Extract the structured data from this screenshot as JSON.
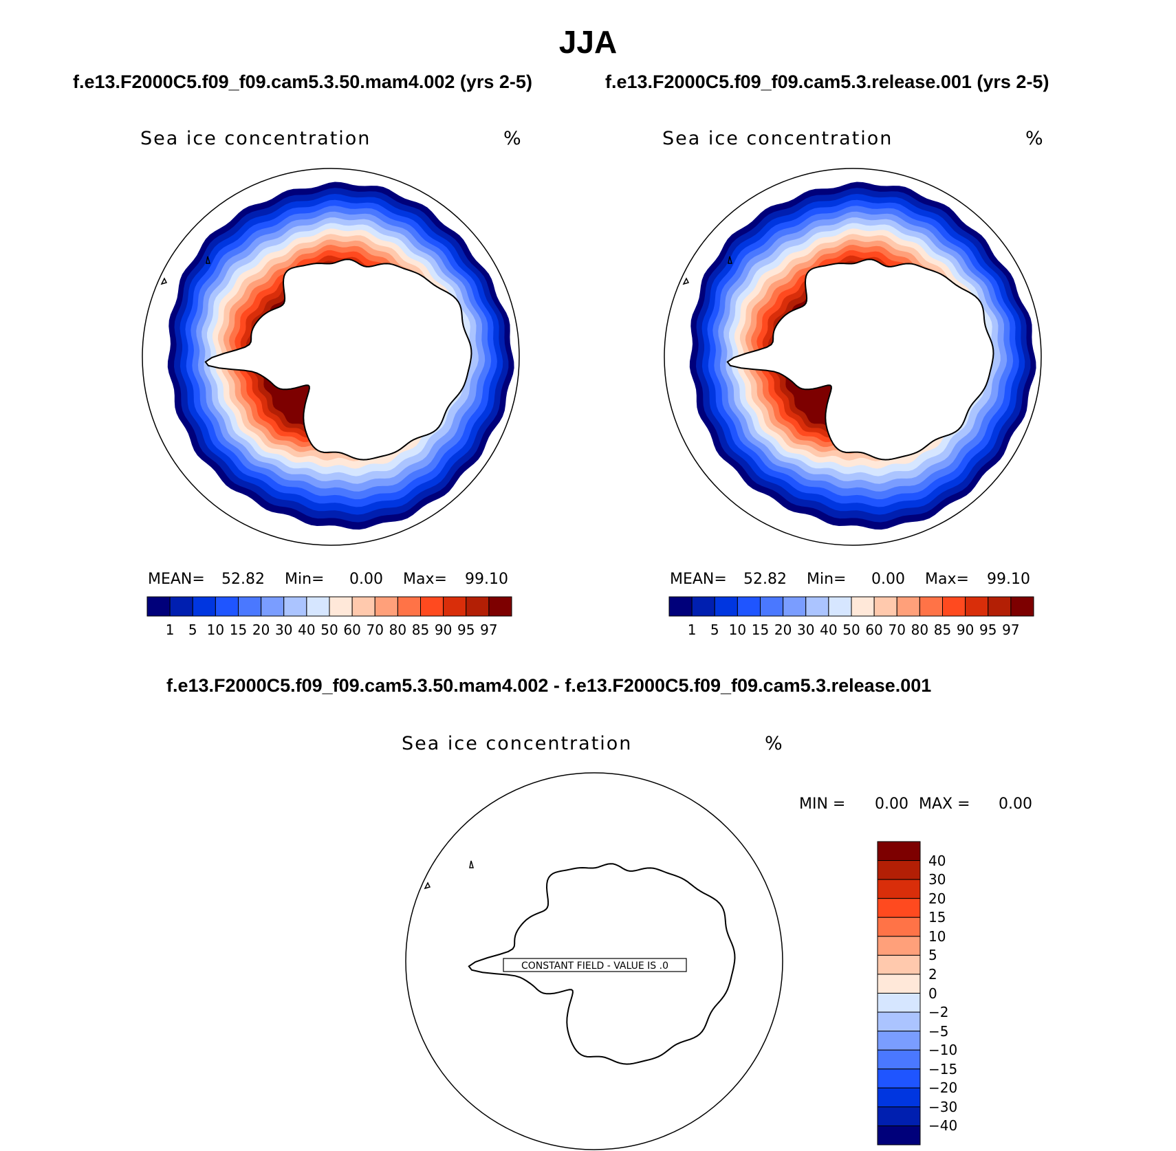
{
  "figure": {
    "season": "JJA",
    "case1_header": "f.e13.F2000C5.f09_f09.cam5.3.50.mam4.002 (yrs 2-5)",
    "case2_header": "f.e13.F2000C5.f09_f09.cam5.3.release.001 (yrs 2-5)",
    "diff_header": "f.e13.F2000C5.f09_f09.cam5.3.50.mam4.002 - f.e13.F2000C5.f09_f09.cam5.3.release.001"
  },
  "panels": [
    {
      "variable": "Sea ice concentration",
      "units": "%",
      "mean_label": "MEAN=",
      "mean_value": "52.82",
      "min_label": "Min=",
      "min_value": "0.00",
      "max_label": "Max=",
      "max_value": "99.10"
    },
    {
      "variable": "Sea ice concentration",
      "units": "%",
      "mean_label": "MEAN=",
      "mean_value": "52.82",
      "min_label": "Min=",
      "min_value": "0.00",
      "max_label": "Max=",
      "max_value": "99.10"
    }
  ],
  "diff_panel": {
    "variable": "Sea ice concentration",
    "units": "%",
    "min_label": "MIN =",
    "min_value": "0.00",
    "max_label": "MAX =",
    "max_value": "0.00",
    "constant_note": "CONSTANT FIELD - VALUE IS .0"
  },
  "chart_data": [
    {
      "type": "heatmap",
      "projection": "south polar stereographic",
      "title": "Sea ice concentration",
      "units": "%",
      "mean": 52.82,
      "min": 0.0,
      "max": 99.1,
      "contour_levels": [
        1,
        5,
        10,
        15,
        20,
        30,
        40,
        50,
        60,
        70,
        80,
        85,
        90,
        95,
        97
      ],
      "colors": [
        "#00007a",
        "#001fb0",
        "#0036e0",
        "#1f55ff",
        "#4a78ff",
        "#7a9dff",
        "#abc4ff",
        "#d6e6ff",
        "#ffe8d9",
        "#ffc9ad",
        "#ffa07a",
        "#ff7347",
        "#ff4a1f",
        "#d92e0a",
        "#b31f05",
        "#7d0000"
      ]
    },
    {
      "type": "heatmap",
      "projection": "south polar stereographic",
      "title": "Sea ice concentration",
      "units": "%",
      "mean": 52.82,
      "min": 0.0,
      "max": 99.1,
      "contour_levels": [
        1,
        5,
        10,
        15,
        20,
        30,
        40,
        50,
        60,
        70,
        80,
        85,
        90,
        95,
        97
      ],
      "colors": [
        "#00007a",
        "#001fb0",
        "#0036e0",
        "#1f55ff",
        "#4a78ff",
        "#7a9dff",
        "#abc4ff",
        "#d6e6ff",
        "#ffe8d9",
        "#ffc9ad",
        "#ffa07a",
        "#ff7347",
        "#ff4a1f",
        "#d92e0a",
        "#b31f05",
        "#7d0000"
      ]
    },
    {
      "type": "heatmap",
      "projection": "south polar stereographic",
      "title": "Sea ice concentration (difference)",
      "units": "%",
      "min": 0.0,
      "max": 0.0,
      "constant_value": 0.0,
      "contour_levels": [
        40,
        30,
        20,
        15,
        10,
        5,
        2,
        0,
        -2,
        -5,
        -10,
        -15,
        -20,
        -30,
        -40
      ],
      "level_labels": [
        "40",
        "30",
        "20",
        "15",
        "10",
        "5",
        "2",
        "0",
        "−2",
        "−5",
        "−10",
        "−15",
        "−20",
        "−30",
        "−40"
      ],
      "colors": [
        "#7d0000",
        "#b31f05",
        "#d92e0a",
        "#ff4a1f",
        "#ff7347",
        "#ffa07a",
        "#ffc9ad",
        "#ffe8d9",
        "#d6e6ff",
        "#abc4ff",
        "#7a9dff",
        "#4a78ff",
        "#1f55ff",
        "#0036e0",
        "#001fb0",
        "#00007a"
      ]
    }
  ]
}
